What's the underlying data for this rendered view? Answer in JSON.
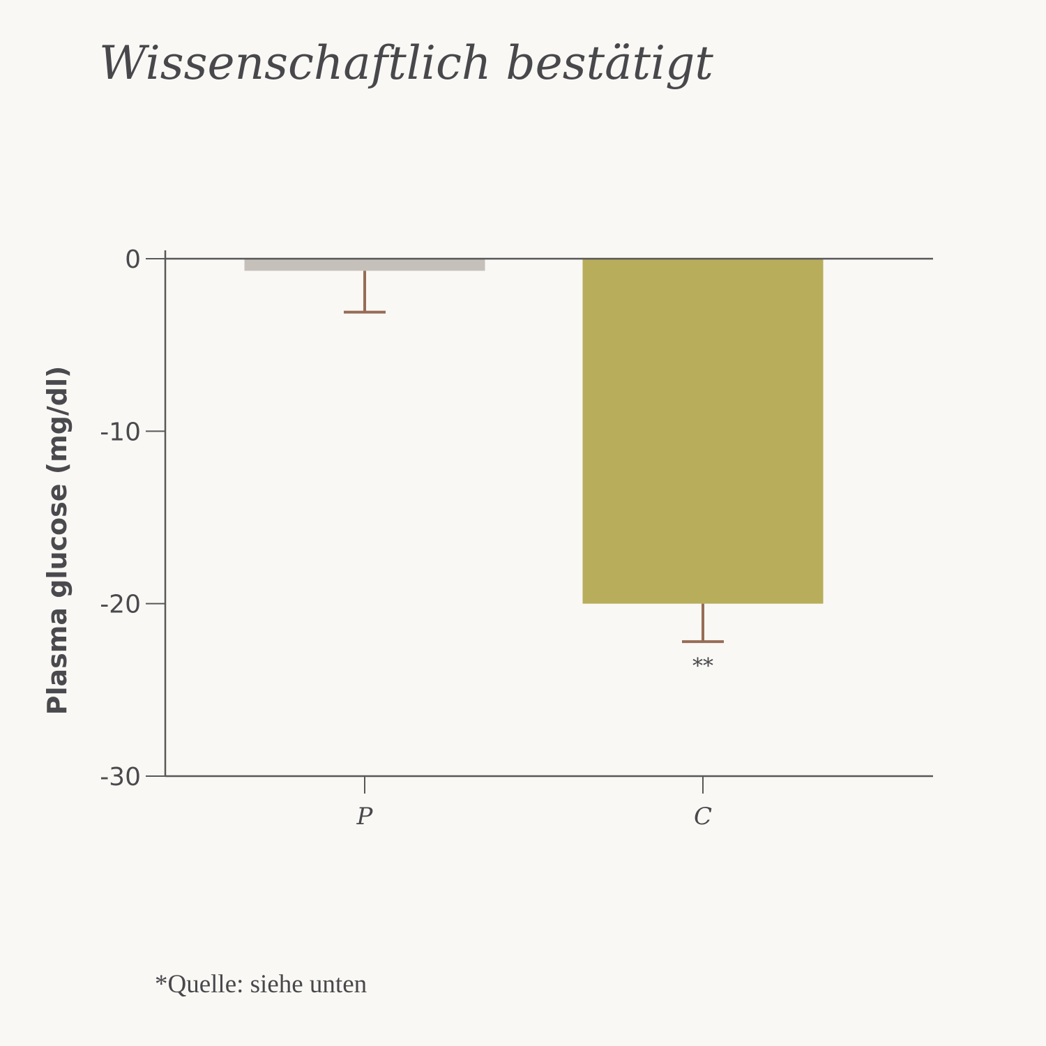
{
  "title": "Wissenschaftlich bestätigt",
  "footnote": "*Quelle: siehe unten",
  "chart_data": {
    "type": "bar",
    "title": "Wissenschaftlich bestätigt",
    "xlabel": "",
    "ylabel": "Plasma glucose (mg/dl)",
    "ylim": [
      -30,
      0
    ],
    "yticks": [
      0,
      -10,
      -20,
      -30
    ],
    "ytick_labels": [
      "0",
      "-10",
      "-20",
      "-30"
    ],
    "categories": [
      "P",
      "C"
    ],
    "values": [
      -0.7,
      -20
    ],
    "error_lower": [
      -3.1,
      -22.2
    ],
    "colors": [
      "#c6c0bb",
      "#b7ad5b"
    ],
    "error_color": "#976c57",
    "axis_color": "#58585a",
    "annotations": [
      {
        "category": "C",
        "text": "**"
      }
    ],
    "grid": false
  }
}
